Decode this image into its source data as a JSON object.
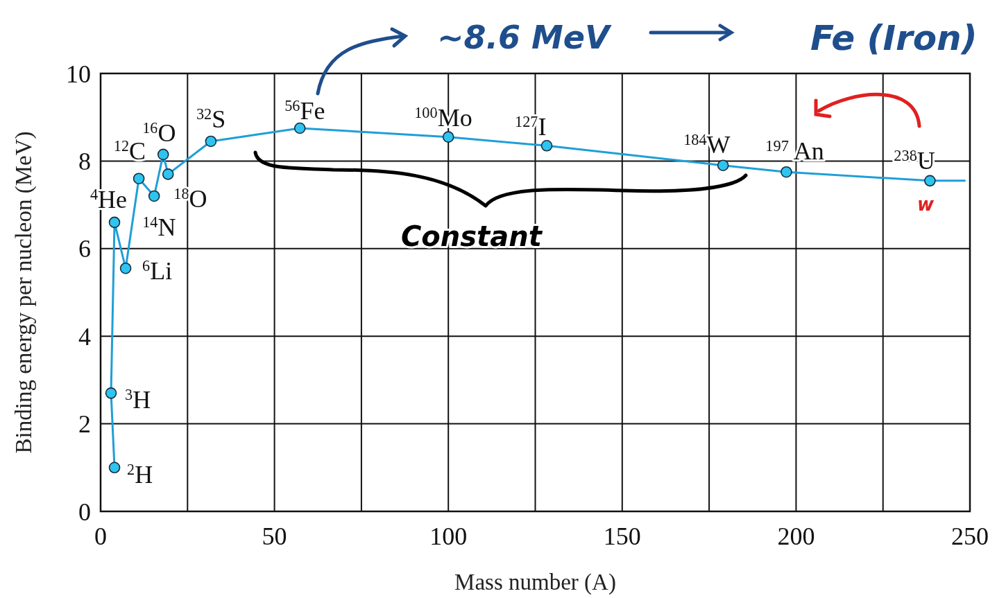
{
  "chart_data": {
    "type": "line",
    "xlabel": "Mass number (A)",
    "ylabel": "Binding energy per nucleon (MeV)",
    "series": [
      {
        "color": "#1e9fd8",
        "x": [
          4,
          3,
          4,
          7.2,
          11,
          15.4,
          18,
          19.4,
          31.7,
          57.3,
          100,
          128.3,
          179,
          197.2,
          238.5,
          248.5
        ],
        "values": [
          1.0,
          2.7,
          6.6,
          5.55,
          7.6,
          7.2,
          8.15,
          7.7,
          8.45,
          8.75,
          8.55,
          8.35,
          7.9,
          7.75,
          7.55,
          7.55
        ]
      }
    ],
    "xlim": [
      0,
      250
    ],
    "xticks": [
      0,
      {
        "value": 25,
        "label": null
      },
      50,
      {
        "value": 75,
        "label": null
      },
      100,
      {
        "value": 125,
        "label": null
      },
      150,
      {
        "value": 175,
        "label": null
      },
      200,
      {
        "value": 225,
        "label": null
      },
      250
    ],
    "ylim": [
      0,
      10
    ],
    "yticks": [
      0,
      2,
      4,
      6,
      8,
      10
    ],
    "grid": true,
    "marker": "circle",
    "line_style": "solid",
    "annotations": [
      {
        "text": "$^{2}$H",
        "x": 4,
        "y": 1.0
      },
      {
        "text": "$^{3}$H",
        "x": 3,
        "y": 2.7
      },
      {
        "text": "$^{4}$He",
        "x": 4,
        "y": 6.6
      },
      {
        "text": "$^{6}$Li",
        "x": 7.2,
        "y": 5.55
      },
      {
        "text": "$^{12}$C",
        "x": 11,
        "y": 7.6
      },
      {
        "text": "$^{14}$N",
        "x": 15.4,
        "y": 7.2
      },
      {
        "text": "$^{16}$O",
        "x": 18,
        "y": 8.15
      },
      {
        "text": "$^{18}$O",
        "x": 19.4,
        "y": 7.7
      },
      {
        "text": "$^{32}$S",
        "x": 31.7,
        "y": 8.45
      },
      {
        "text": "$^{56}$Fe",
        "x": 57.3,
        "y": 8.75
      },
      {
        "text": "$^{100}$Mo",
        "x": 100,
        "y": 8.55
      },
      {
        "text": "$^{127}$I",
        "x": 128.3,
        "y": 8.35
      },
      {
        "text": "$^{184}$W",
        "x": 179,
        "y": 7.9
      },
      {
        "text": "$^{197}$ An",
        "x": 197.2,
        "y": 7.75
      },
      {
        "text": "$^{238}$U",
        "x": 238.5,
        "y": 7.55
      },
      "∼8.6 MeV",
      "Fe (Iron)",
      "Constant",
      "w"
    ]
  }
}
